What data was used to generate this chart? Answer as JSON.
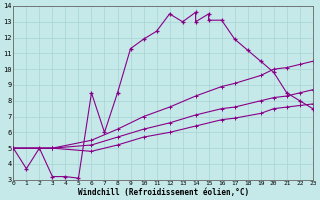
{
  "xlabel": "Windchill (Refroidissement éolien,°C)",
  "xlim": [
    0,
    23
  ],
  "ylim": [
    3,
    14
  ],
  "xticks": [
    0,
    1,
    2,
    3,
    4,
    5,
    6,
    7,
    8,
    9,
    10,
    11,
    12,
    13,
    14,
    15,
    16,
    17,
    18,
    19,
    20,
    21,
    22,
    23
  ],
  "yticks": [
    3,
    4,
    5,
    6,
    7,
    8,
    9,
    10,
    11,
    12,
    13,
    14
  ],
  "bg_color": "#c5e8e8",
  "grid_color": "#a8d4d4",
  "line_color": "#880088",
  "line1_x": [
    0,
    1,
    2,
    3,
    4,
    5,
    6,
    7,
    8,
    9,
    10,
    11,
    12,
    13,
    14,
    14,
    15,
    15,
    16,
    17,
    18,
    19,
    20,
    21,
    22,
    23
  ],
  "line1_y": [
    5.0,
    3.7,
    5.0,
    3.2,
    3.2,
    3.1,
    8.5,
    6.0,
    8.5,
    11.3,
    11.9,
    12.4,
    13.5,
    13.0,
    13.6,
    13.0,
    13.5,
    13.1,
    13.1,
    11.9,
    11.2,
    10.5,
    9.8,
    8.5,
    8.0,
    7.5
  ],
  "line2_x": [
    0,
    3,
    6,
    8,
    10,
    12,
    14,
    16,
    17,
    19,
    20,
    21,
    22,
    23
  ],
  "line2_y": [
    5.0,
    5.0,
    5.5,
    6.2,
    7.0,
    7.6,
    8.3,
    8.9,
    9.1,
    9.6,
    10.0,
    10.1,
    10.3,
    10.5
  ],
  "line3_x": [
    0,
    3,
    6,
    8,
    10,
    12,
    14,
    16,
    17,
    19,
    20,
    21,
    22,
    23
  ],
  "line3_y": [
    5.0,
    5.0,
    5.2,
    5.7,
    6.2,
    6.6,
    7.1,
    7.5,
    7.6,
    8.0,
    8.2,
    8.3,
    8.5,
    8.7
  ],
  "line4_x": [
    0,
    3,
    6,
    8,
    10,
    12,
    14,
    16,
    17,
    19,
    20,
    21,
    22,
    23
  ],
  "line4_y": [
    5.0,
    5.0,
    4.8,
    5.2,
    5.7,
    6.0,
    6.4,
    6.8,
    6.9,
    7.2,
    7.5,
    7.6,
    7.7,
    7.8
  ]
}
